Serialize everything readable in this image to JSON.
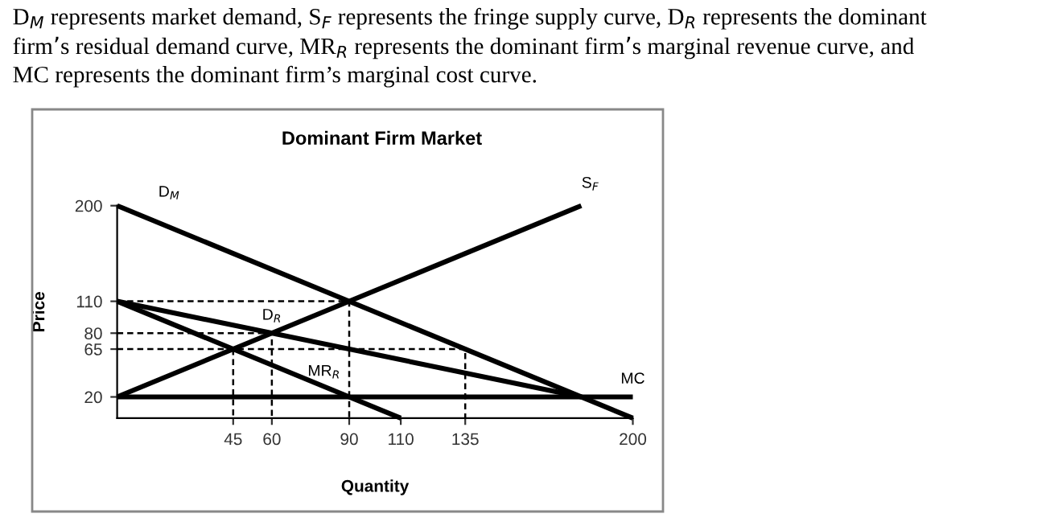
{
  "chart_data": {
    "type": "line",
    "title": "Dominant Firm Market",
    "xlabel": "Quantity",
    "ylabel": "Price",
    "annotations": [
      "D$_{M}$ represents market demand, S$_{F}$ represents the fringe supply curve, D$_{R}$ represents the dominant",
      "firm’s residual demand curve, MR$_{R}$ represents the dominant firm’s marginal revenue curve, and",
      "MC represents the dominant firm’s marginal cost curve.",
      {
        "text": "D$_{M}$",
        "x": 8,
        "y": 200
      },
      {
        "text": "S$_{F}$",
        "x": 180,
        "y": 200
      },
      {
        "text": "D$_{R}$",
        "x": 60,
        "y": 80
      },
      {
        "text": "MR$_{R}$",
        "x": 75,
        "y": 65
      },
      {
        "text": "MC",
        "x": 200,
        "y": 20
      }
    ],
    "series": [
      {
        "color": "#000000",
        "x": [
          0,
          200
        ],
        "values": [
          200,
          0
        ]
      },
      {
        "color": "#000000",
        "x": [
          0,
          180
        ],
        "values": [
          20,
          200
        ]
      },
      {
        "color": "#000000",
        "x": [
          0,
          180
        ],
        "values": [
          110,
          20
        ]
      },
      {
        "color": "#000000",
        "x": [
          0,
          110
        ],
        "values": [
          110,
          0
        ]
      },
      {
        "color": "#000000",
        "x": [
          0,
          200
        ],
        "values": [
          20,
          20
        ]
      },
      {
        "color": "#000000",
        "line_style": "dashed",
        "x": [
          0,
          90,
          90
        ],
        "values": [
          110,
          110,
          0
        ]
      },
      {
        "color": "#000000",
        "line_style": "dashed",
        "x": [
          0,
          60,
          60
        ],
        "values": [
          80,
          80,
          0
        ]
      },
      {
        "color": "#000000",
        "line_style": "dashed",
        "x": [
          0,
          135,
          135
        ],
        "values": [
          65,
          65,
          0
        ]
      },
      {
        "color": "#000000",
        "line_style": "dashed",
        "x": [
          45,
          45
        ],
        "values": [
          65,
          0
        ]
      }
    ],
    "xlim": [
      0,
      200
    ],
    "ylim": [
      0,
      200
    ],
    "xticks": [
      45,
      60,
      90,
      110,
      135,
      200
    ],
    "yticks": [
      20,
      65,
      80,
      110,
      200
    ],
    "grid": false,
    "legend": false,
    "marker": "none",
    "line_style": "solid"
  }
}
